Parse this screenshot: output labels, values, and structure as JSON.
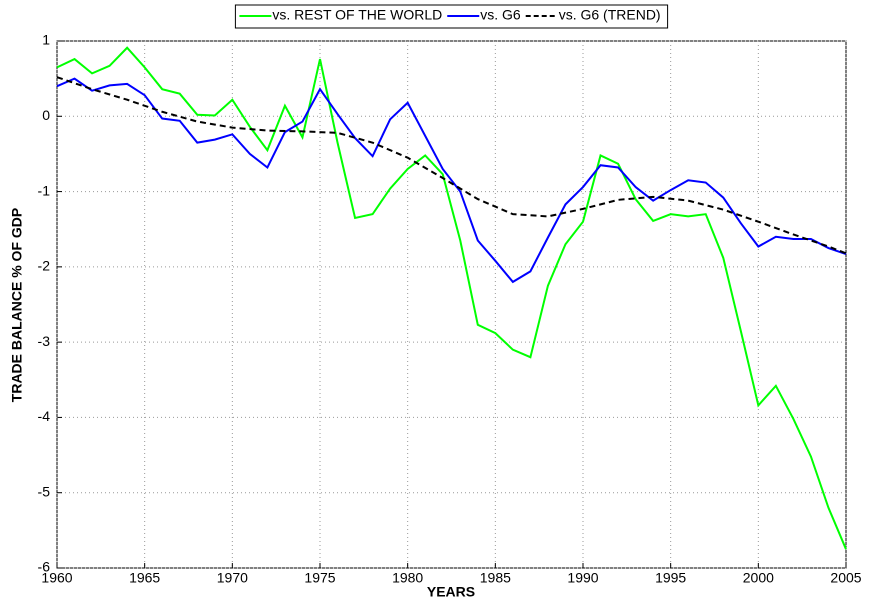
{
  "chart_data": {
    "type": "line",
    "xlabel": "YEARS",
    "ylabel": "TRADE BALANCE % OF GDP",
    "x": [
      1960,
      1961,
      1962,
      1963,
      1964,
      1965,
      1966,
      1967,
      1968,
      1969,
      1970,
      1971,
      1972,
      1973,
      1974,
      1975,
      1976,
      1977,
      1978,
      1979,
      1980,
      1981,
      1982,
      1983,
      1984,
      1985,
      1986,
      1987,
      1988,
      1989,
      1990,
      1991,
      1992,
      1993,
      1994,
      1995,
      1996,
      1997,
      1998,
      1999,
      2000,
      2001,
      2002,
      2003,
      2004,
      2005
    ],
    "series": [
      {
        "name": "vs. REST OF THE WORLD",
        "color": "#00ff00",
        "dash": false,
        "values": [
          0.65,
          0.76,
          0.57,
          0.67,
          0.91,
          0.65,
          0.36,
          0.3,
          0.02,
          0.01,
          0.22,
          -0.14,
          -0.45,
          0.14,
          -0.28,
          0.76,
          -0.35,
          -1.35,
          -1.3,
          -0.96,
          -0.7,
          -0.52,
          -0.77,
          -1.65,
          -2.77,
          -2.88,
          -3.1,
          -3.2,
          -2.25,
          -1.7,
          -1.4,
          -0.52,
          -0.63,
          -1.1,
          -1.39,
          -1.3,
          -1.33,
          -1.3,
          -1.88,
          -2.85,
          -3.84,
          -3.58,
          -4.02,
          -4.52,
          -5.2,
          -5.75
        ]
      },
      {
        "name": "vs. G6",
        "color": "#0000ff",
        "dash": false,
        "values": [
          0.4,
          0.5,
          0.34,
          0.41,
          0.43,
          0.28,
          -0.03,
          -0.06,
          -0.35,
          -0.31,
          -0.24,
          -0.5,
          -0.68,
          -0.21,
          -0.07,
          0.36,
          0.03,
          -0.29,
          -0.53,
          -0.04,
          0.18,
          -0.26,
          -0.7,
          -1.0,
          -1.65,
          -1.92,
          -2.2,
          -2.06,
          -1.61,
          -1.17,
          -0.94,
          -0.65,
          -0.68,
          -0.94,
          -1.12,
          -0.98,
          -0.85,
          -0.88,
          -1.08,
          -1.42,
          -1.73,
          -1.6,
          -1.63,
          -1.63,
          -1.75,
          -1.83
        ]
      },
      {
        "name": "vs. G6 (TREND)",
        "color": "#000000",
        "dash": true,
        "x": [
          1960,
          1962,
          1964,
          1966,
          1968,
          1970,
          1972,
          1974,
          1976,
          1978,
          1980,
          1982,
          1984,
          1986,
          1988,
          1990,
          1992,
          1994,
          1996,
          1998,
          2000,
          2002,
          2004,
          2005
        ],
        "values": [
          0.52,
          0.36,
          0.22,
          0.06,
          -0.07,
          -0.15,
          -0.19,
          -0.2,
          -0.22,
          -0.35,
          -0.55,
          -0.82,
          -1.1,
          -1.3,
          -1.33,
          -1.23,
          -1.11,
          -1.07,
          -1.12,
          -1.24,
          -1.4,
          -1.57,
          -1.73,
          -1.82
        ]
      }
    ],
    "xlim": [
      1960,
      2005
    ],
    "xticks": [
      1960,
      1965,
      1970,
      1975,
      1980,
      1985,
      1990,
      1995,
      2000,
      2005
    ],
    "ylim": [
      -6,
      1
    ],
    "yticks": [
      1,
      0,
      -1,
      -2,
      -3,
      -4,
      -5,
      -6
    ],
    "grid": true,
    "legend": "top"
  }
}
